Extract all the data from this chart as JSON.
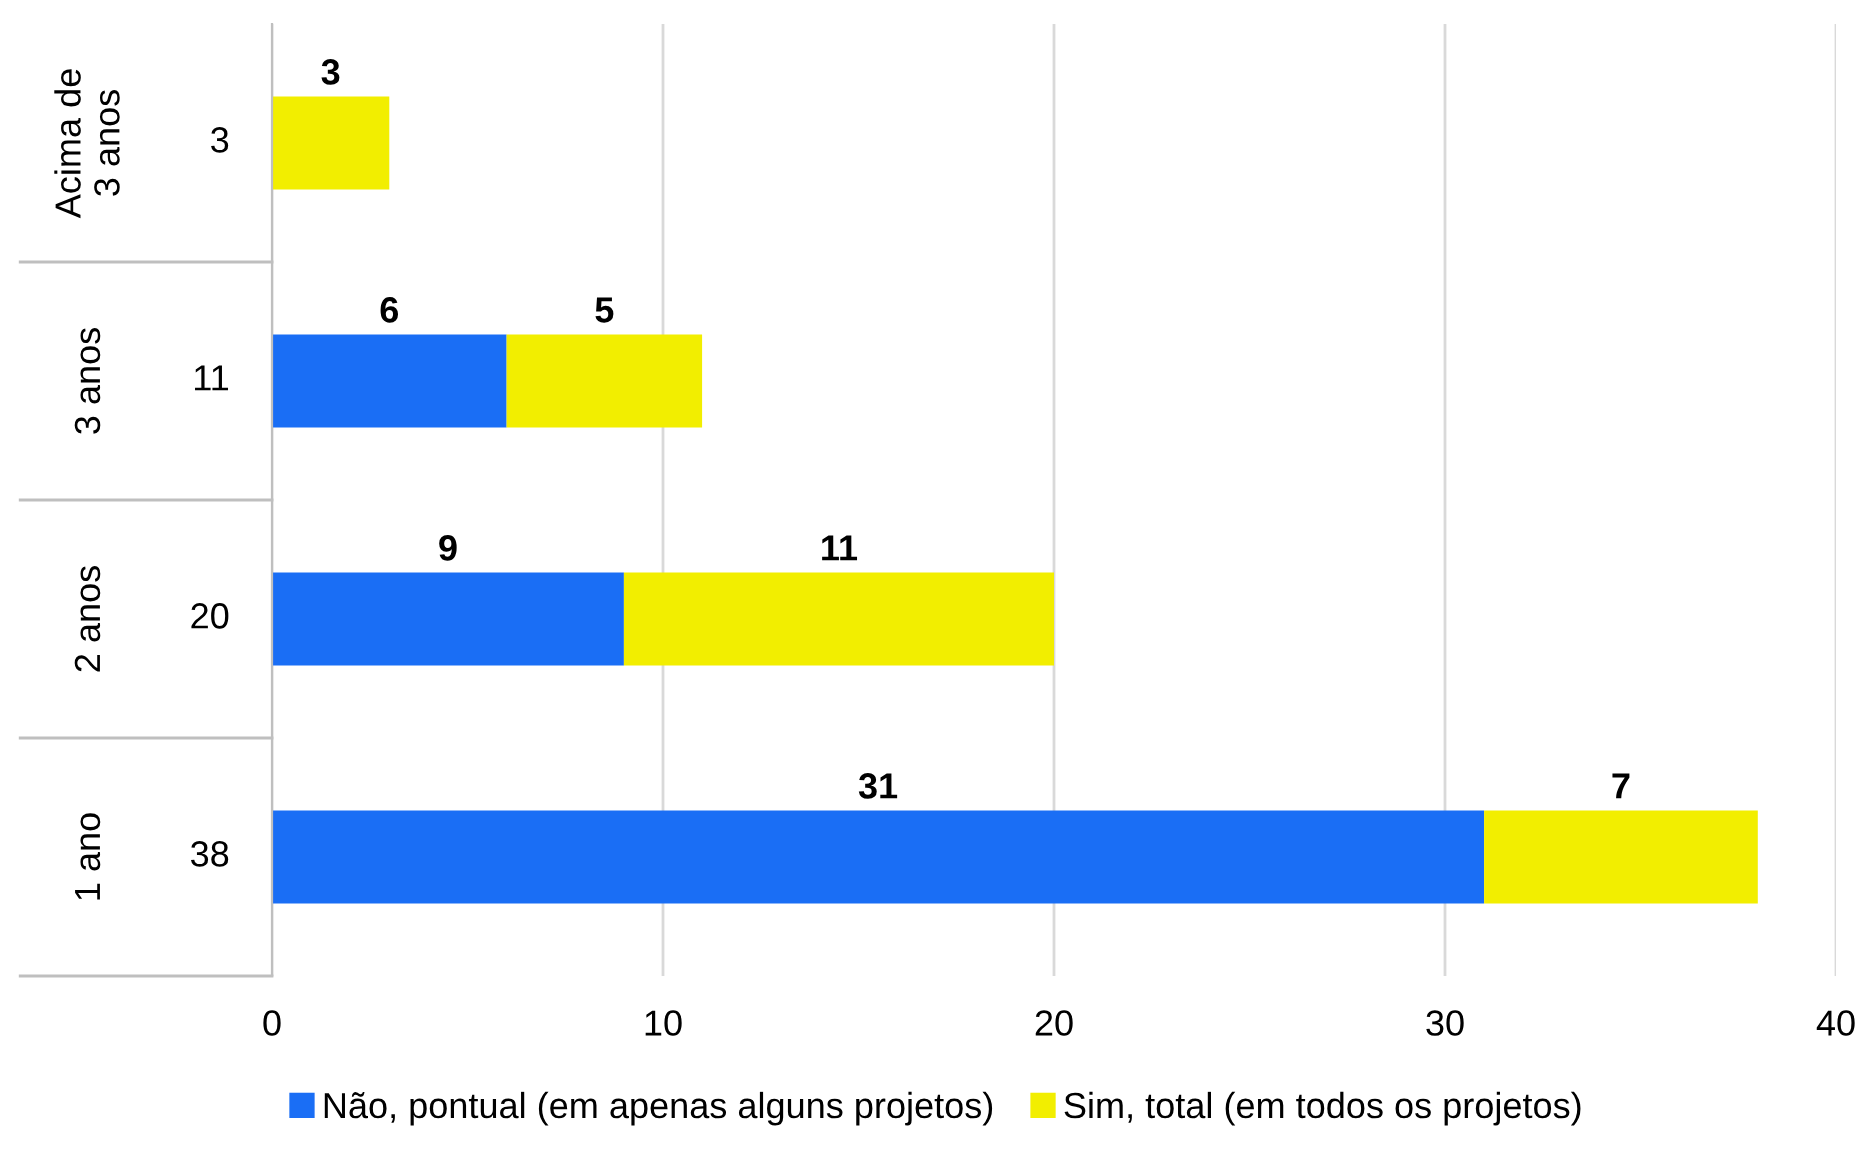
{
  "chart_data": {
    "type": "bar",
    "orientation": "horizontal",
    "stacked": true,
    "categories": [
      "Acima de\n3 anos",
      "3 anos",
      "2 anos",
      "1 ano"
    ],
    "totals": [
      "3",
      "11",
      "20",
      "38"
    ],
    "series": [
      {
        "name": "Não, pontual (em apenas alguns projetos)",
        "color": "#1a6ef5",
        "values": [
          null,
          6,
          9,
          31
        ]
      },
      {
        "name": "Sim, total (em todos os projetos)",
        "color": "#f2ee00",
        "values": [
          3,
          5,
          11,
          7
        ]
      }
    ],
    "xlim": [
      0,
      40
    ],
    "xticks": [
      0,
      10,
      20,
      30,
      40
    ],
    "grid": "x",
    "data_labels": true,
    "legend": "bottom"
  }
}
